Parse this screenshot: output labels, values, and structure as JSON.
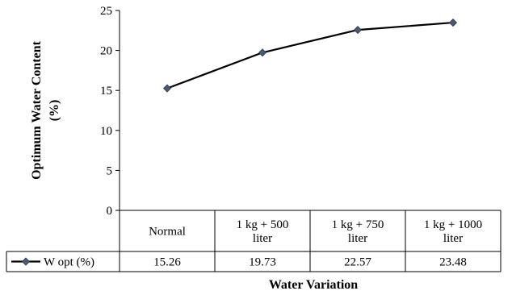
{
  "chart_data": {
    "type": "line",
    "title": "",
    "xlabel": "Water Variation",
    "ylabel_lines": [
      "Optimum Water Content",
      "(%)"
    ],
    "ylim": [
      0,
      25
    ],
    "yticks": [
      0,
      5,
      10,
      15,
      20,
      25
    ],
    "grid": false,
    "legend": "data-table",
    "categories": [
      [
        "Normal"
      ],
      [
        "1 kg + 500",
        "liter"
      ],
      [
        "1 kg + 750",
        "liter"
      ],
      [
        "1 kg + 1000",
        "liter"
      ]
    ],
    "series": [
      {
        "name": "W opt (%)",
        "values": [
          15.26,
          19.73,
          22.57,
          23.48
        ],
        "value_labels": [
          "15.26",
          "19.73",
          "22.57",
          "23.48"
        ],
        "color": "#000000",
        "marker": "diamond",
        "marker_color": "#4a5a70"
      }
    ]
  }
}
